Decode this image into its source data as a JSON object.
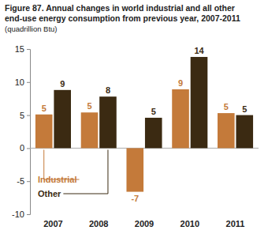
{
  "chart_data": {
    "type": "bar",
    "title": "Figure 87. Annual changes in world industrial and all other end-use energy consumption from previous year, 2007-2011",
    "subtitle": "(quadrillion Btu)",
    "categories": [
      "2007",
      "2008",
      "2009",
      "2010",
      "2011"
    ],
    "series": [
      {
        "name": "Industrial",
        "color": "#c47a3a",
        "values": [
          5.1,
          5.4,
          -6.6,
          8.9,
          5.3
        ],
        "value_labels": [
          "5",
          "5",
          "-7",
          "9",
          "5"
        ]
      },
      {
        "name": "Other",
        "color": "#3b2a12",
        "values": [
          8.8,
          7.8,
          4.6,
          13.8,
          5.0
        ],
        "value_labels": [
          "9",
          "8",
          "5",
          "14",
          "5"
        ]
      }
    ],
    "ylim": [
      -10,
      15
    ],
    "yticks": [
      -10,
      -5,
      0,
      5,
      10,
      15
    ],
    "grid": false,
    "data_labels": true,
    "legend": "lower left"
  }
}
